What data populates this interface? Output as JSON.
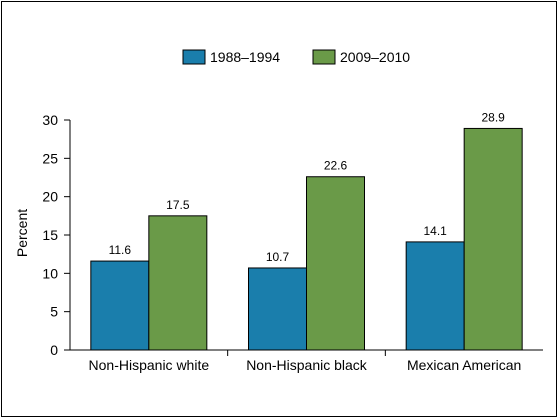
{
  "chart_data": {
    "type": "bar",
    "categories": [
      "Non-Hispanic white",
      "Non-Hispanic black",
      "Mexican American"
    ],
    "series": [
      {
        "name": "1988–1994",
        "values": [
          11.6,
          10.7,
          14.1
        ],
        "color": "#1a7eac"
      },
      {
        "name": "2009–2010",
        "values": [
          17.5,
          22.6,
          28.9
        ],
        "color": "#6a9a48"
      }
    ],
    "ylabel": "Percent",
    "ylim": [
      0,
      30
    ],
    "yticks": [
      0,
      5,
      10,
      15,
      20,
      25,
      30
    ],
    "grid": false,
    "legend": "top-center"
  }
}
